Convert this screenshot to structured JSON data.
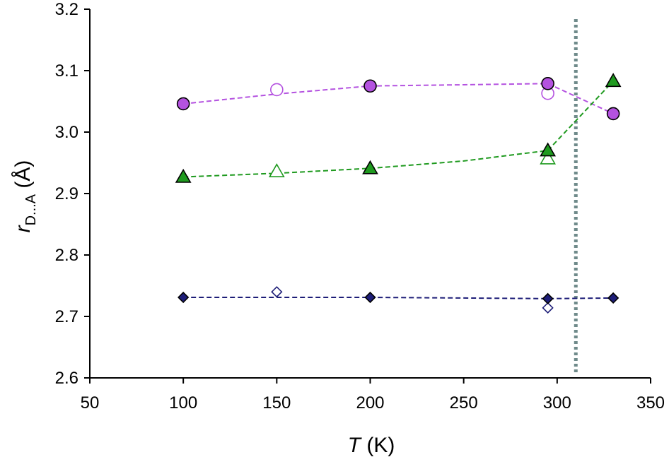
{
  "chart_data": {
    "type": "scatter",
    "title": "",
    "xlabel": {
      "var": "T",
      "unit": " (K)"
    },
    "ylabel": {
      "var": "r",
      "sub": "D...A",
      "unit": " (Å)"
    },
    "xlim": [
      50,
      350
    ],
    "ylim": [
      2.6,
      3.2
    ],
    "xticks": [
      50,
      100,
      150,
      200,
      250,
      300,
      350
    ],
    "yticks": [
      2.6,
      2.7,
      2.8,
      2.9,
      3.0,
      3.1,
      3.2
    ],
    "xtick_labels": [
      "50",
      "100",
      "150",
      "200",
      "250",
      "300",
      "350"
    ],
    "ytick_labels": [
      "2.6",
      "2.7",
      "2.8",
      "2.9",
      "3.0",
      "3.1",
      "3.2"
    ],
    "grid": false,
    "legend": "none",
    "reference_line": {
      "x": 310,
      "color": "#6f8a8a",
      "style": "dotted"
    },
    "series": [
      {
        "marker": "circle",
        "color": "#b452e0",
        "filled_points": [
          [
            100,
            3.046
          ],
          [
            200,
            3.075
          ],
          [
            295,
            3.079
          ],
          [
            330,
            3.03
          ]
        ],
        "open_points": [
          [
            150,
            3.069
          ],
          [
            295,
            3.063
          ]
        ],
        "fit_line": [
          [
            100,
            3.046
          ],
          [
            150,
            3.062
          ],
          [
            200,
            3.075
          ],
          [
            250,
            3.077
          ],
          [
            295,
            3.079
          ],
          [
            330,
            3.03
          ]
        ]
      },
      {
        "marker": "triangle",
        "color": "#1f9a1f",
        "filled_points": [
          [
            100,
            2.927
          ],
          [
            200,
            2.941
          ],
          [
            295,
            2.97
          ],
          [
            330,
            3.083
          ]
        ],
        "open_points": [
          [
            150,
            2.936
          ],
          [
            295,
            2.957
          ]
        ],
        "fit_line": [
          [
            100,
            2.927
          ],
          [
            150,
            2.933
          ],
          [
            200,
            2.941
          ],
          [
            250,
            2.953
          ],
          [
            295,
            2.97
          ],
          [
            330,
            3.083
          ]
        ]
      },
      {
        "marker": "diamond",
        "color": "#1e1e78",
        "filled_points": [
          [
            100,
            2.731
          ],
          [
            200,
            2.731
          ],
          [
            295,
            2.729
          ],
          [
            330,
            2.73
          ]
        ],
        "open_points": [
          [
            150,
            2.74
          ],
          [
            295,
            2.714
          ]
        ],
        "fit_line": [
          [
            100,
            2.731
          ],
          [
            150,
            2.731
          ],
          [
            200,
            2.731
          ],
          [
            250,
            2.73
          ],
          [
            295,
            2.729
          ],
          [
            330,
            2.73
          ]
        ]
      }
    ]
  }
}
